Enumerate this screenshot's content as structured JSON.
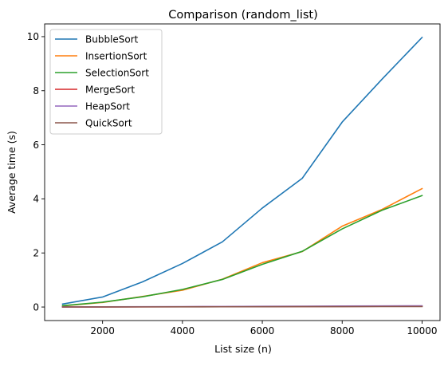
{
  "chart_data": {
    "type": "line",
    "title": "Comparison (random_list)",
    "xlabel": "List size (n)",
    "ylabel": "Average time (s)",
    "xlim": [
      550,
      10450
    ],
    "ylim": [
      -0.5,
      10.47
    ],
    "xticks": [
      2000,
      4000,
      6000,
      8000,
      10000
    ],
    "yticks": [
      0,
      2,
      4,
      6,
      8,
      10
    ],
    "grid": false,
    "legend_position": "top-left",
    "x": [
      1000,
      2000,
      3000,
      4000,
      5000,
      6000,
      7000,
      8000,
      9000,
      10000
    ],
    "series": [
      {
        "name": "BubbleSort",
        "color": "#1f77b4",
        "values": [
          0.11,
          0.37,
          0.93,
          1.61,
          2.41,
          3.66,
          4.76,
          6.84,
          8.43,
          9.97
        ]
      },
      {
        "name": "InsertionSort",
        "color": "#ff7f0e",
        "values": [
          0.04,
          0.17,
          0.39,
          0.62,
          1.03,
          1.64,
          2.05,
          2.99,
          3.61,
          4.38
        ]
      },
      {
        "name": "SelectionSort",
        "color": "#2ca02c",
        "values": [
          0.05,
          0.18,
          0.38,
          0.65,
          1.02,
          1.58,
          2.06,
          2.89,
          3.58,
          4.12
        ]
      },
      {
        "name": "MergeSort",
        "color": "#d62728",
        "values": [
          0.002,
          0.004,
          0.007,
          0.009,
          0.012,
          0.015,
          0.018,
          0.021,
          0.024,
          0.027
        ]
      },
      {
        "name": "HeapSort",
        "color": "#9467bd",
        "values": [
          0.003,
          0.007,
          0.011,
          0.015,
          0.02,
          0.025,
          0.03,
          0.035,
          0.04,
          0.045
        ]
      },
      {
        "name": "QuickSort",
        "color": "#8c564b",
        "values": [
          0.001,
          0.003,
          0.005,
          0.007,
          0.009,
          0.011,
          0.013,
          0.015,
          0.017,
          0.019
        ]
      }
    ]
  }
}
